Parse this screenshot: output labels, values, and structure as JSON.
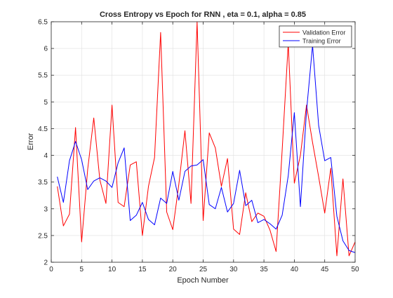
{
  "chart_data": {
    "type": "line",
    "title": "Cross Entropy vs Epoch for RNN , eta = 0.1, alpha = 0.85",
    "xlabel": "Epoch Number",
    "ylabel": "Error",
    "xlim": [
      0,
      50
    ],
    "ylim": [
      2,
      6.5
    ],
    "xticks": [
      0,
      5,
      10,
      15,
      20,
      25,
      30,
      35,
      40,
      45,
      50
    ],
    "yticks": [
      2,
      2.5,
      3,
      3.5,
      4,
      4.5,
      5,
      5.5,
      6,
      6.5
    ],
    "xtick_labels": [
      "0",
      "5",
      "10",
      "15",
      "20",
      "25",
      "30",
      "35",
      "40",
      "45",
      "50"
    ],
    "ytick_labels": [
      "2",
      "2.5",
      "3",
      "3.5",
      "4",
      "4.5",
      "5",
      "5.5",
      "6",
      "6.5"
    ],
    "grid": true,
    "legend_position": "top-right",
    "x": [
      1,
      2,
      3,
      4,
      5,
      6,
      7,
      8,
      9,
      10,
      11,
      12,
      13,
      14,
      15,
      16,
      17,
      18,
      19,
      20,
      21,
      22,
      23,
      24,
      25,
      26,
      27,
      28,
      29,
      30,
      31,
      32,
      33,
      34,
      35,
      36,
      37,
      38,
      39,
      40,
      41,
      42,
      43,
      44,
      45,
      46,
      47,
      48,
      49,
      50
    ],
    "series": [
      {
        "name": "Validation Error",
        "color": "#ff0000",
        "values": [
          3.42,
          2.68,
          2.9,
          4.52,
          2.38,
          3.74,
          4.7,
          3.54,
          3.1,
          4.94,
          3.12,
          3.04,
          3.82,
          3.88,
          2.5,
          3.42,
          3.96,
          6.3,
          2.94,
          2.61,
          3.46,
          4.46,
          3.1,
          6.5,
          2.78,
          4.42,
          4.14,
          3.42,
          3.94,
          2.62,
          2.52,
          3.3,
          2.76,
          2.92,
          2.86,
          2.6,
          2.2,
          4.1,
          6.1,
          3.48,
          4.0,
          4.94,
          4.24,
          3.6,
          2.92,
          3.76,
          2.12,
          3.56,
          2.12,
          2.38
        ]
      },
      {
        "name": "Training Error",
        "color": "#0000ff",
        "values": [
          3.6,
          3.12,
          3.9,
          4.26,
          3.92,
          3.36,
          3.52,
          3.58,
          3.52,
          3.4,
          3.86,
          4.14,
          2.78,
          2.88,
          3.12,
          2.8,
          2.7,
          3.2,
          3.1,
          3.7,
          3.16,
          3.7,
          3.8,
          3.82,
          3.92,
          3.08,
          3.0,
          3.4,
          2.94,
          3.1,
          3.72,
          3.06,
          3.16,
          2.74,
          2.8,
          2.72,
          2.62,
          2.88,
          3.62,
          4.8,
          3.04,
          4.82,
          6.06,
          4.56,
          3.9,
          3.96,
          2.86,
          2.4,
          2.22,
          2.18
        ]
      }
    ]
  }
}
